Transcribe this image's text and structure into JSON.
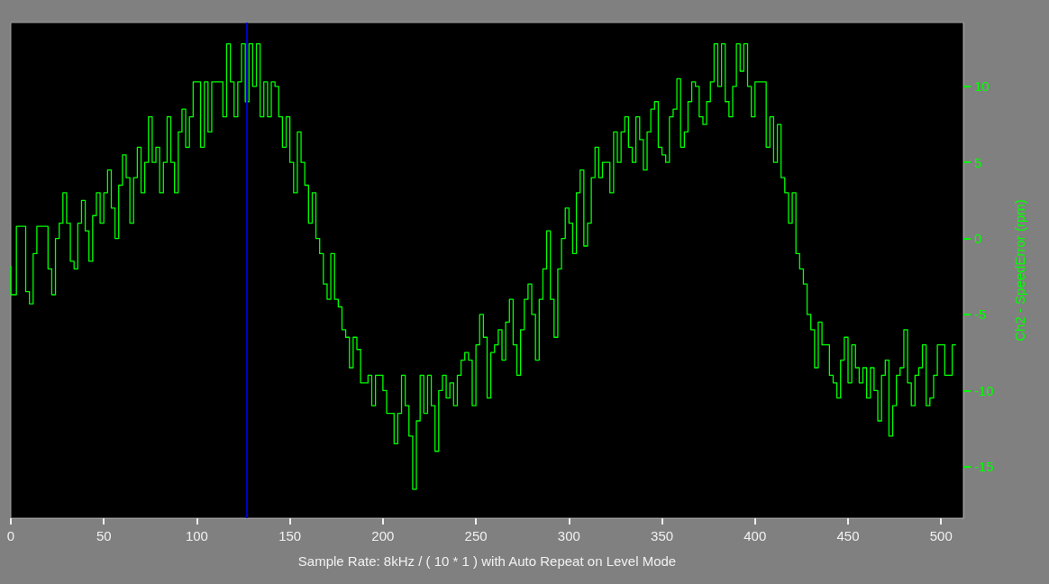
{
  "chart_data": {
    "type": "step",
    "xlabel": "Sample Rate: 8kHz / ( 10 * 1 ) with Auto Repeat on Level Mode",
    "ylabel": "Ch2 - SpeedError (rpm)",
    "xlim": [
      0,
      512
    ],
    "xticks": [
      0,
      50,
      100,
      150,
      200,
      250,
      300,
      350,
      400,
      450,
      500
    ],
    "ylim": [
      -18.4,
      14.2
    ],
    "yticks": [
      -15,
      -10,
      -5,
      0,
      5,
      10
    ],
    "grid": false,
    "ref_lines": [
      {
        "axis": "x",
        "value": 127,
        "color": "#0000c0"
      }
    ],
    "series": [
      {
        "color": "#00ff00",
        "x": [
          0,
          3,
          5,
          8,
          10,
          12,
          14,
          16,
          20,
          22,
          24,
          26,
          28,
          30,
          32,
          34,
          36,
          38,
          40,
          42,
          44,
          46,
          48,
          50,
          52,
          54,
          56,
          58,
          60,
          62,
          64,
          66,
          68,
          70,
          72,
          74,
          76,
          78,
          80,
          82,
          84,
          86,
          88,
          90,
          92,
          94,
          96,
          98,
          100,
          102,
          104,
          106,
          108,
          110,
          112,
          114,
          116,
          118,
          120,
          122,
          124,
          126,
          128,
          130,
          132,
          134,
          136,
          138,
          140,
          142,
          144,
          146,
          148,
          150,
          152,
          154,
          156,
          158,
          160,
          162,
          164,
          166,
          168,
          170,
          172,
          174,
          176,
          178,
          180,
          182,
          184,
          186,
          188,
          190,
          192,
          194,
          196,
          198,
          200,
          202,
          204,
          206,
          208,
          210,
          212,
          214,
          216,
          218,
          220,
          222,
          224,
          226,
          228,
          230,
          232,
          234,
          236,
          238,
          240,
          242,
          244,
          246,
          248,
          250,
          252,
          254,
          256,
          258,
          260,
          262,
          264,
          266,
          268,
          270,
          272,
          274,
          276,
          278,
          280,
          282,
          284,
          286,
          288,
          290,
          292,
          294,
          296,
          298,
          300,
          302,
          304,
          306,
          308,
          310,
          312,
          314,
          316,
          318,
          320,
          322,
          324,
          326,
          328,
          330,
          332,
          334,
          336,
          338,
          340,
          342,
          344,
          346,
          348,
          350,
          352,
          354,
          356,
          358,
          360,
          362,
          364,
          366,
          368,
          370,
          372,
          374,
          376,
          378,
          380,
          382,
          384,
          386,
          388,
          390,
          392,
          394,
          396,
          398,
          400,
          402,
          404,
          406,
          408,
          410,
          412,
          414,
          416,
          418,
          420,
          422,
          424,
          426,
          428,
          430,
          432,
          434,
          436,
          438,
          440,
          442,
          444,
          446,
          448,
          450,
          452,
          454,
          456,
          458,
          460,
          462,
          464,
          466,
          468,
          470,
          472,
          474,
          476,
          478,
          480,
          482,
          484,
          486,
          488,
          490,
          492,
          494,
          496,
          498,
          500,
          502,
          504,
          506,
          508
        ],
        "values": [
          -1.8,
          -3.7,
          0.8,
          0.8,
          -3.5,
          -4.3,
          -1,
          0.8,
          0.8,
          -2,
          -3.7,
          0,
          1,
          3,
          1,
          -1.5,
          -2,
          1,
          2.5,
          0.5,
          -1.5,
          1.5,
          3,
          1,
          3,
          4.5,
          2,
          0,
          3.5,
          5.5,
          4,
          1,
          4,
          6,
          3,
          5,
          8,
          5,
          6,
          3,
          5,
          8,
          5,
          3,
          7,
          8.5,
          6,
          8,
          10.3,
          10.3,
          6,
          10.3,
          7,
          10.3,
          10.3,
          10.3,
          8,
          12.8,
          10.3,
          8,
          10.3,
          12.8,
          9,
          12.8,
          10,
          12.8,
          8,
          10.3,
          8,
          10.3,
          10,
          8,
          6,
          8,
          5,
          3,
          7,
          5,
          3.5,
          1,
          3,
          0,
          -1,
          -3,
          -4,
          -1,
          -4,
          -4.5,
          -6,
          -6.5,
          -8.5,
          -6.5,
          -7.3,
          -9.5,
          -9.5,
          -9,
          -11,
          -9,
          -9,
          -10,
          -11.5,
          -11.5,
          -13.5,
          -11.5,
          -9,
          -11,
          -13,
          -16.5,
          -12,
          -9,
          -11.5,
          -9,
          -11,
          -14,
          -10,
          -9,
          -10.5,
          -9.5,
          -11,
          -9,
          -8,
          -7.5,
          -8,
          -11,
          -7,
          -5,
          -6.5,
          -10.5,
          -7.5,
          -7,
          -6,
          -8,
          -5.5,
          -4,
          -7,
          -9,
          -6,
          -4,
          -3,
          -5,
          -8,
          -4,
          -2,
          0.5,
          -4,
          -6.5,
          -2,
          0,
          2,
          1,
          -1,
          3,
          4.5,
          -0.5,
          1,
          4,
          6,
          4,
          5,
          5,
          3,
          7,
          5,
          7,
          8,
          6,
          5,
          8,
          6.5,
          4.5,
          7,
          8.5,
          9,
          6,
          5.5,
          5,
          8,
          8.5,
          10.5,
          6,
          7,
          9,
          10.3,
          10,
          8,
          7.5,
          9,
          10.3,
          12.8,
          10,
          12.8,
          9,
          8,
          10,
          12.8,
          11,
          12.8,
          10,
          8,
          10.3,
          10.3,
          10.3,
          6,
          8,
          5,
          7.5,
          4,
          3,
          1,
          3,
          -1,
          -2,
          -3,
          -5,
          -6,
          -8.5,
          -5.5,
          -7,
          -7,
          -9,
          -9.5,
          -10.5,
          -8,
          -6.5,
          -9.5,
          -7,
          -8.5,
          -9.5,
          -8.5,
          -10.5,
          -8.5,
          -10,
          -12,
          -9,
          -8,
          -13,
          -11,
          -9,
          -8.5,
          -6,
          -9.5,
          -11,
          -9,
          -8.5,
          -7,
          -11,
          -10.5,
          -9,
          -7,
          -7,
          -9,
          -9,
          -7
        ]
      }
    ]
  }
}
